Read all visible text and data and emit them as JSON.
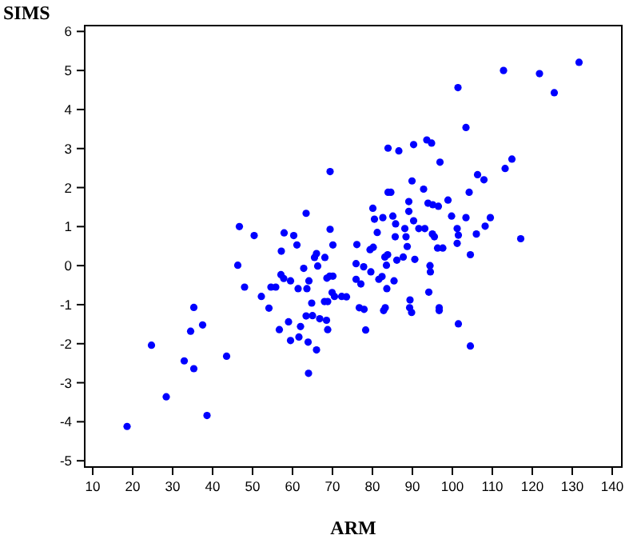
{
  "chart_data": {
    "type": "scatter",
    "xlabel": "ARM",
    "ylabel": "SIMS",
    "xlim": [
      8,
      142.4
    ],
    "ylim": [
      -5.16,
      6.15
    ],
    "xticks": [
      10,
      20,
      30,
      40,
      50,
      60,
      70,
      80,
      90,
      100,
      110,
      120,
      130,
      140
    ],
    "yticks": [
      -5,
      -4,
      -3,
      -2,
      -1,
      0,
      1,
      2,
      3,
      4,
      5,
      6
    ],
    "marker": "circle",
    "grid": false,
    "series": [
      {
        "color": "#0000ff",
        "x": [
          46.7,
          50.4,
          57.2,
          57.9,
          60.3,
          61.1,
          66.0,
          65.5,
          69.4,
          70.1,
          46.3,
          48.0,
          52.2,
          54.6,
          55.8,
          54.1,
          57.1,
          57.8,
          59.5,
          61.4,
          63.6,
          62.8,
          64.1,
          66.3,
          68.1,
          68.6,
          69.3,
          70.1,
          69.9,
          70.5,
          72.3,
          64.8,
          68.0,
          68.8,
          63.4,
          65.0,
          66.8,
          68.5,
          59.0,
          56.7,
          62.0,
          61.6,
          59.5,
          63.9,
          68.8,
          66.0,
          64.0,
          35.3,
          37.5,
          34.5,
          24.7,
          32.9,
          35.3,
          43.5,
          28.4,
          38.6,
          18.6,
          63.4,
          69.4,
          76.1,
          81.2,
          85.7,
          88.1,
          91.6,
          93.1,
          88.4,
          95.0,
          95.5,
          96.3,
          97.6,
          101.2,
          101.5,
          101.2,
          106.0,
          108.2,
          117.1,
          104.5,
          88.7,
          86.1,
          87.7,
          90.6,
          83.8,
          83.1,
          80.2,
          79.4,
          83.5,
          79.6,
          77.8,
          75.9,
          85.4,
          82.4,
          81.6,
          75.9,
          77.1,
          73.5,
          94.4,
          94.5,
          83.6,
          94.1,
          89.4,
          89.3,
          89.8,
          96.7,
          96.7,
          83.2,
          82.8,
          76.7,
          77.9,
          78.3,
          101.5,
          104.5,
          131.7,
          112.8,
          121.8,
          125.5,
          101.4,
          103.4,
          83.9,
          86.6,
          90.3,
          93.6,
          94.8,
          96.9,
          114.9,
          113.2,
          106.3,
          107.9,
          89.9,
          83.9,
          84.6,
          92.8,
          104.2,
          80.1,
          89.1,
          89.1,
          93.9,
          95.1,
          96.5,
          98.9,
          80.5,
          82.6,
          85.1,
          90.3,
          99.8,
          103.4,
          109.5,
          85.8
        ],
        "values": [
          1.0,
          0.77,
          0.37,
          0.84,
          0.77,
          0.53,
          0.31,
          0.21,
          0.93,
          0.53,
          0.01,
          -0.55,
          -0.79,
          -0.55,
          -0.55,
          -1.09,
          -0.23,
          -0.33,
          -0.39,
          -0.59,
          -0.59,
          -0.07,
          -0.39,
          -0.01,
          0.21,
          -0.32,
          -0.27,
          -0.27,
          -0.69,
          -0.79,
          -0.79,
          -0.96,
          -0.92,
          -0.92,
          -1.29,
          -1.28,
          -1.36,
          -1.4,
          -1.44,
          -1.64,
          -1.56,
          -1.83,
          -1.92,
          -1.96,
          -1.64,
          -2.16,
          -2.76,
          -1.07,
          -1.52,
          -1.68,
          -2.04,
          -2.44,
          -2.64,
          -2.32,
          -3.36,
          -3.84,
          -4.12,
          1.34,
          2.41,
          0.54,
          0.85,
          0.74,
          0.95,
          0.95,
          0.95,
          0.74,
          0.81,
          0.74,
          0.45,
          0.45,
          0.95,
          0.78,
          0.57,
          0.81,
          1.01,
          0.69,
          0.28,
          0.49,
          0.14,
          0.22,
          0.16,
          0.28,
          0.22,
          0.47,
          0.41,
          0.01,
          -0.16,
          -0.03,
          0.05,
          -0.39,
          -0.28,
          -0.35,
          -0.35,
          -0.47,
          -0.8,
          0.0,
          -0.16,
          -0.59,
          -0.68,
          -0.88,
          -1.08,
          -1.2,
          -1.08,
          -1.15,
          -1.08,
          -1.15,
          -1.08,
          -1.12,
          -1.65,
          -1.49,
          -2.06,
          5.21,
          5.0,
          4.92,
          4.43,
          4.56,
          3.54,
          3.01,
          2.94,
          3.1,
          3.22,
          3.14,
          2.65,
          2.73,
          2.49,
          2.33,
          2.2,
          2.17,
          1.88,
          1.88,
          1.96,
          1.88,
          1.47,
          1.64,
          1.39,
          1.6,
          1.56,
          1.52,
          1.68,
          1.19,
          1.23,
          1.27,
          1.15,
          1.27,
          1.23,
          1.23,
          1.07
        ]
      }
    ]
  }
}
